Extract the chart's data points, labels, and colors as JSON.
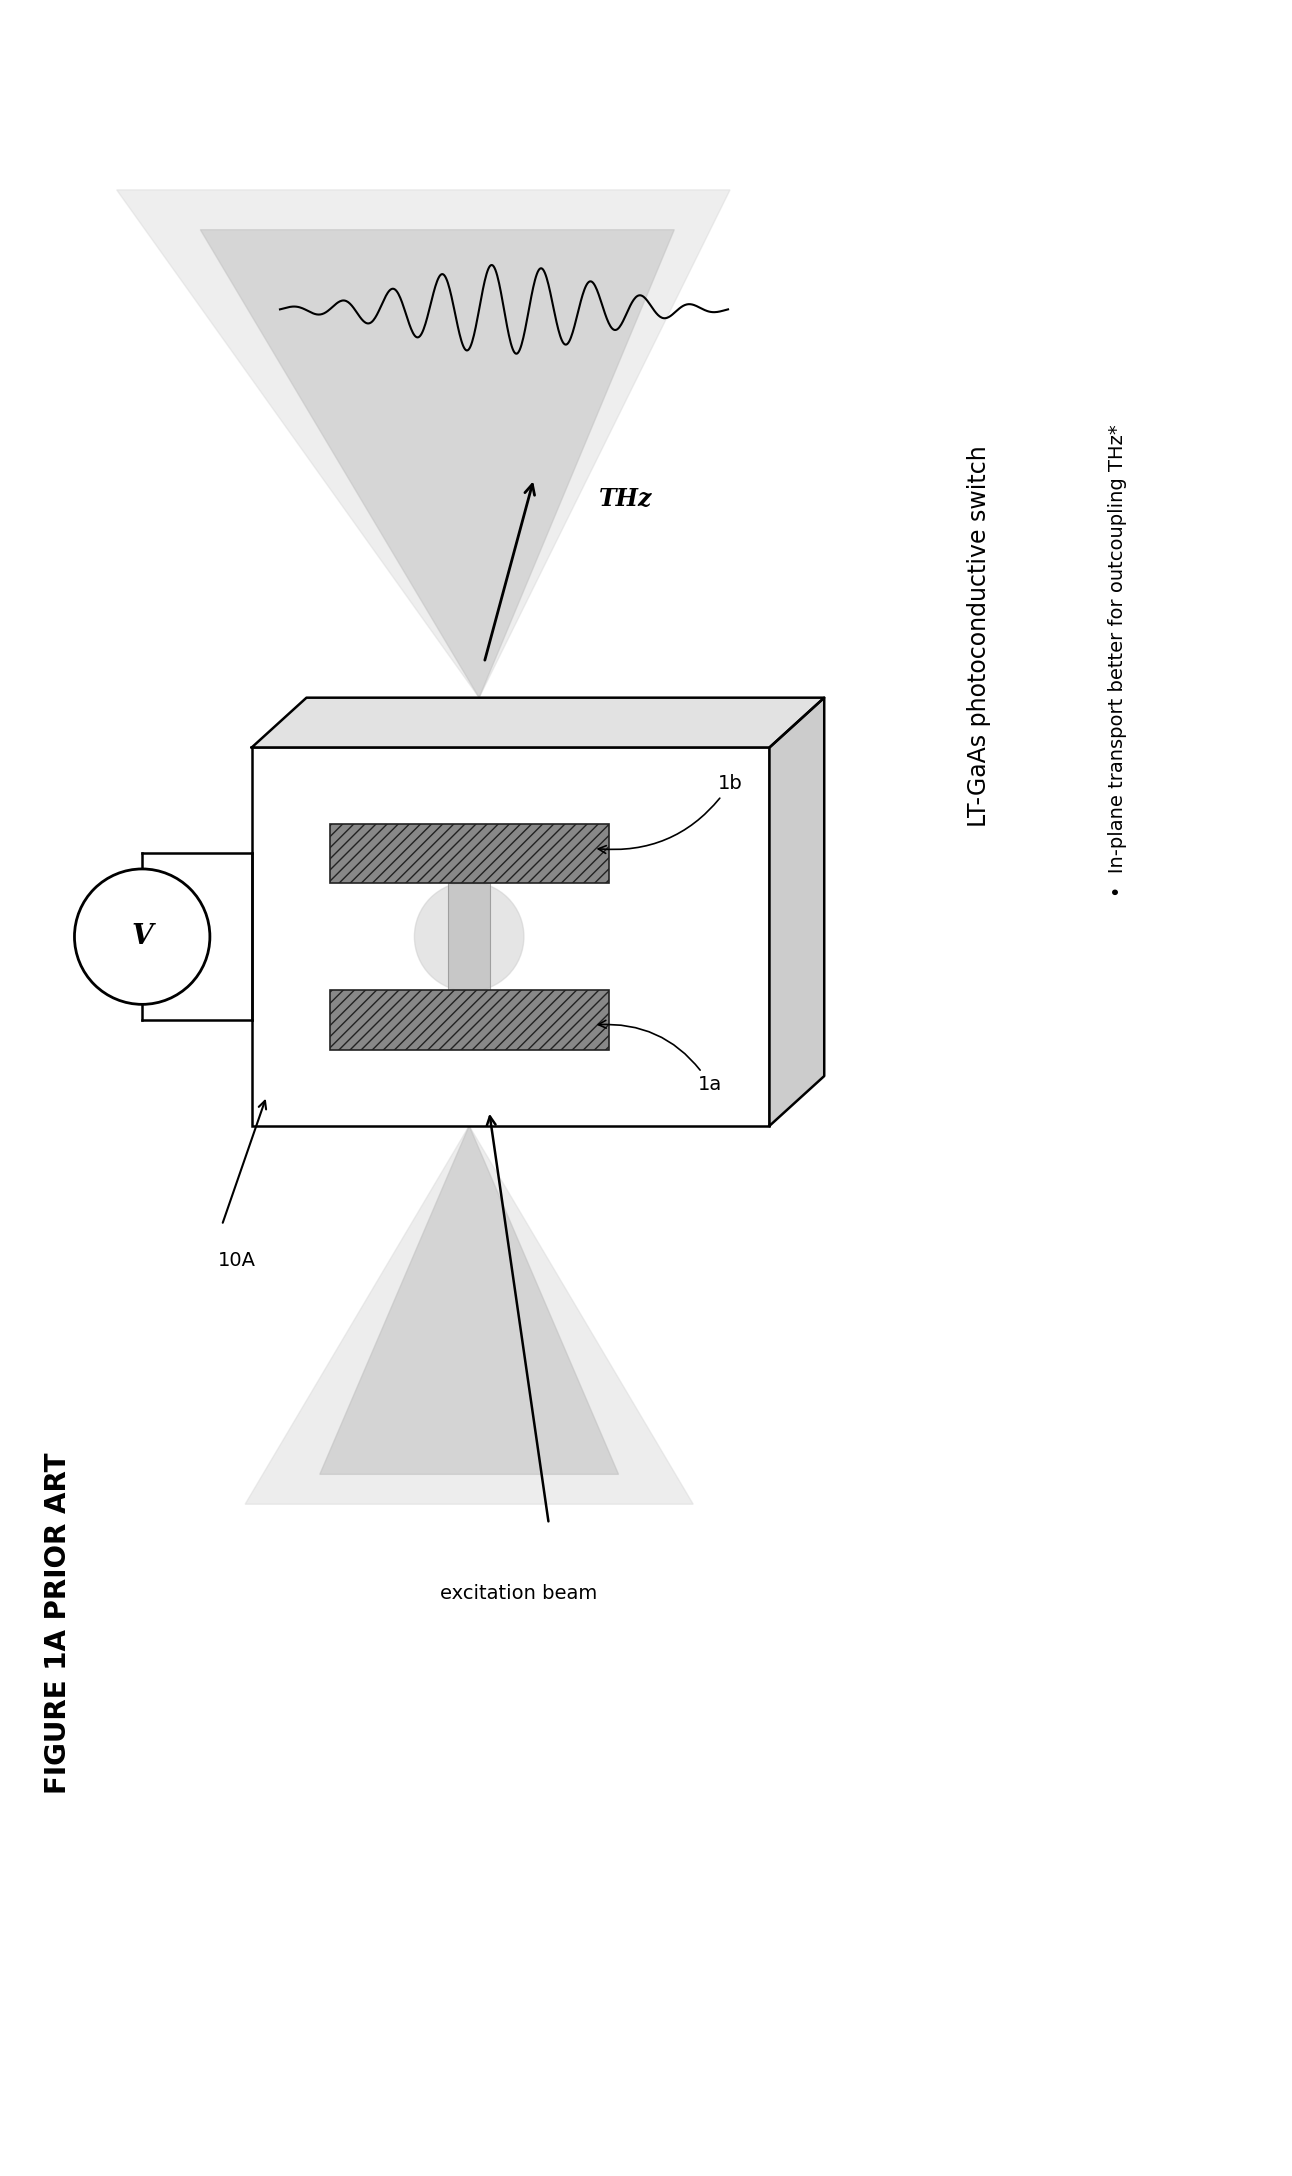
{
  "bg_color": "#ffffff",
  "title": "FIGURE 1A PRIOR ART",
  "label_10A": "10A",
  "label_1a": "1a",
  "label_1b": "1b",
  "label_THz": "THz",
  "label_excitation": "excitation beam",
  "text_LT": "LT-GaAs photoconductive switch",
  "text_bullet": "•  In-plane transport better for outcoupling THz*",
  "fig_width": 12.92,
  "fig_height": 21.76,
  "xlim": [
    0,
    12.92
  ],
  "ylim": [
    0,
    21.76
  ]
}
